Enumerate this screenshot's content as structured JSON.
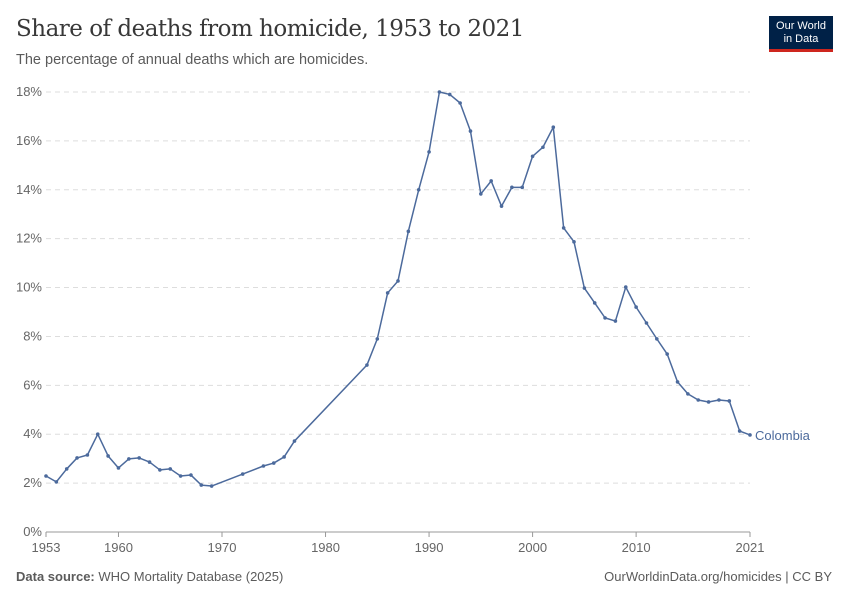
{
  "header": {
    "title": "Share of deaths from homicide, 1953 to 2021",
    "subtitle": "The percentage of annual deaths which are homicides.",
    "logo_line1": "Our World",
    "logo_line2": "in Data"
  },
  "footer": {
    "source_label": "Data source:",
    "source": "WHO Mortality Database (2025)",
    "link": "OurWorldinData.org/homicides | CC BY"
  },
  "chart_data": {
    "type": "line",
    "title": "Share of deaths from homicide, 1953 to 2021",
    "subtitle": "The percentage of annual deaths which are homicides.",
    "xlim": [
      1953,
      2021
    ],
    "ylim": [
      0,
      18
    ],
    "x_ticks": [
      "1953",
      "1960",
      "1970",
      "1980",
      "1990",
      "2000",
      "2010",
      "2021"
    ],
    "y_ticks": [
      "0%",
      "2%",
      "4%",
      "6%",
      "8%",
      "10%",
      "12%",
      "14%",
      "16%",
      "18%"
    ],
    "grid": "horizontal dashed",
    "series": [
      {
        "name": "Colombia",
        "color": "#4c6a9c",
        "x": [
          1953,
          1954,
          1955,
          1956,
          1957,
          1958,
          1959,
          1960,
          1961,
          1962,
          1963,
          1964,
          1965,
          1966,
          1967,
          1968,
          1969,
          1972,
          1974,
          1975,
          1976,
          1977,
          1984,
          1985,
          1986,
          1987,
          1988,
          1989,
          1990,
          1991,
          1992,
          1993,
          1994,
          1995,
          1996,
          1997,
          1998,
          1999,
          2000,
          2001,
          2002,
          2003,
          2004,
          2005,
          2006,
          2007,
          2008,
          2009,
          2010,
          2011,
          2012,
          2013,
          2014,
          2015,
          2016,
          2017,
          2018,
          2019,
          2020,
          2021
        ],
        "y": [
          2.29,
          2.05,
          2.58,
          3.03,
          3.15,
          4.0,
          3.11,
          2.62,
          2.99,
          3.03,
          2.86,
          2.54,
          2.58,
          2.29,
          2.33,
          1.92,
          1.88,
          2.37,
          2.7,
          2.82,
          3.07,
          3.72,
          6.83,
          7.9,
          9.78,
          10.27,
          12.3,
          14.0,
          15.55,
          18.0,
          17.9,
          17.55,
          16.4,
          13.83,
          14.36,
          13.33,
          14.1,
          14.1,
          15.37,
          15.74,
          16.56,
          12.44,
          11.87,
          9.98,
          9.37,
          8.76,
          8.63,
          10.02,
          9.2,
          8.55,
          7.9,
          7.28,
          6.14,
          5.65,
          5.4,
          5.32,
          5.4,
          5.36,
          4.13,
          3.97
        ]
      }
    ]
  }
}
